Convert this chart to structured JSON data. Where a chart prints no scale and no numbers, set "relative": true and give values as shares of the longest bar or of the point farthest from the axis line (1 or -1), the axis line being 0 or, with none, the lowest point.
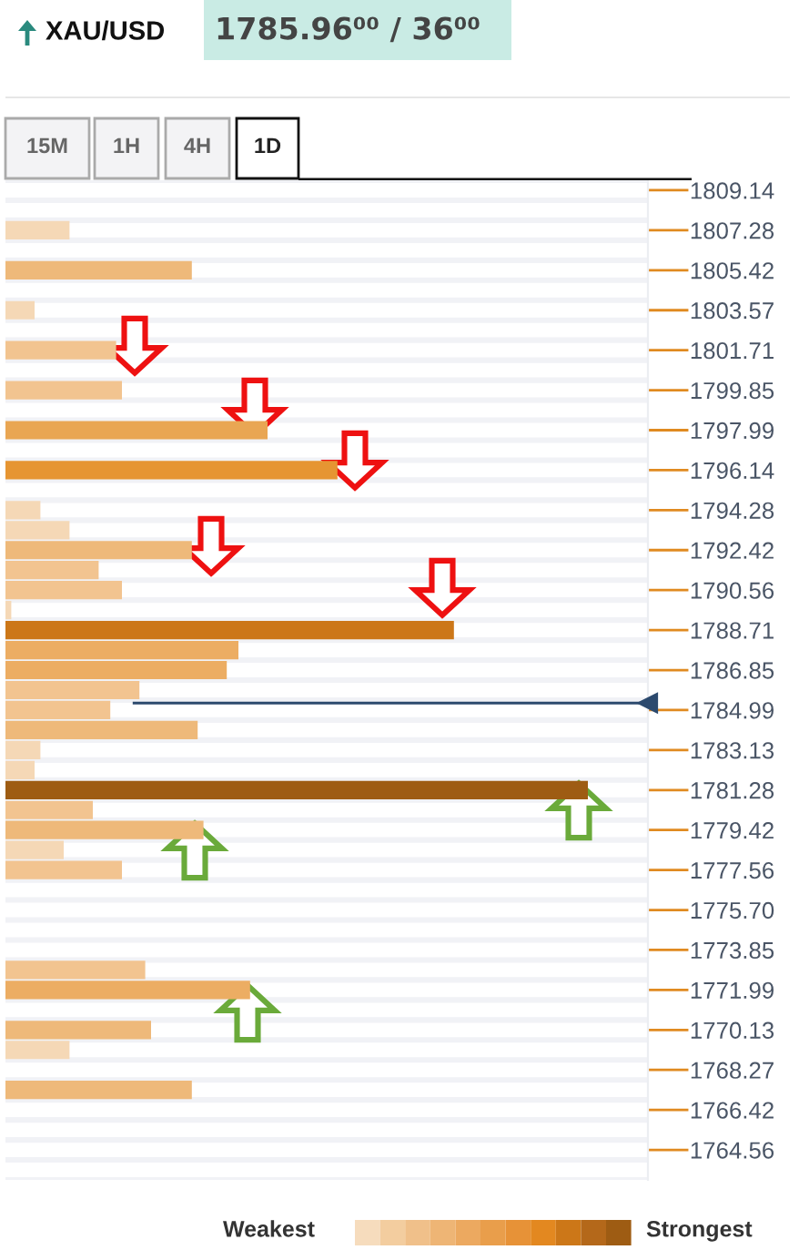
{
  "chart_data": {
    "type": "bar",
    "orientation": "horizontal",
    "relative": true,
    "title": "XAU/USD",
    "subtitle": "1785.96⁰⁰ / 36⁰⁰",
    "categories": [
      "1809.14",
      null,
      "1807.28",
      null,
      "1805.42",
      null,
      "1803.57",
      null,
      "1801.71",
      null,
      "1799.85",
      null,
      "1797.99",
      null,
      "1796.14",
      null,
      "1794.28",
      null,
      "1792.42",
      null,
      "1790.56",
      null,
      "1788.71",
      null,
      "1786.85",
      null,
      "1784.99",
      null,
      "1783.13",
      null,
      "1781.28",
      null,
      "1779.42",
      null,
      "1777.56",
      null,
      "1775.70",
      null,
      "1773.85",
      null,
      "1771.99",
      null,
      "1770.13",
      null,
      "1768.27",
      null,
      "1766.42",
      null,
      "1764.56",
      null
    ],
    "values": [
      null,
      null,
      0.11,
      null,
      0.32,
      null,
      0.05,
      null,
      0.19,
      null,
      0.2,
      null,
      0.45,
      null,
      0.57,
      null,
      0.06,
      0.11,
      0.32,
      0.16,
      0.2,
      0.01,
      0.77,
      0.4,
      0.38,
      0.23,
      0.18,
      0.33,
      0.06,
      0.05,
      1.0,
      0.15,
      0.34,
      0.1,
      0.2,
      null,
      null,
      null,
      null,
      0.24,
      0.42,
      null,
      0.25,
      0.11,
      null,
      0.32,
      null,
      null,
      null,
      null
    ],
    "colors": [
      "#f5d8b6",
      "#f5d8b6",
      "#f5d8b6",
      "#f5d8b6",
      "#eeb97a",
      "#f5d8b6",
      "#f5d8b6",
      "#f5d8b6",
      "#f2c490",
      "#f5d8b6",
      "#f2c490",
      "#f5d8b6",
      "#e9a653",
      "#f5d8b6",
      "#e69532",
      "#f5d8b6",
      "#f5d8b6",
      "#f5d8b6",
      "#eeb97a",
      "#f2c490",
      "#f2c490",
      "#f5d8b6",
      "#cc7718",
      "#ecad63",
      "#ecad63",
      "#f2c490",
      "#f2c490",
      "#eeb97a",
      "#f5d8b6",
      "#f5d8b6",
      "#9e5c13",
      "#f2c490",
      "#eeb97a",
      "#f5d8b6",
      "#f2c490",
      "#f5d8b6",
      "#f5d8b6",
      "#f5d8b6",
      "#f5d8b6",
      "#f2c490",
      "#ecad63",
      "#f5d8b6",
      "#eeb97a",
      "#f5d8b6",
      "#f5d8b6",
      "#eeb97a",
      "#f5d8b6",
      "#f5d8b6",
      "#f5d8b6",
      "#f5d8b6"
    ],
    "ref_lines": [
      {
        "axis": "y",
        "value": "1784.99",
        "label": null,
        "color": "#2c4a6e"
      }
    ],
    "annotations": [
      "15M",
      "1H",
      "4H",
      "1D",
      "Weakest",
      "Strongest"
    ],
    "grid": false,
    "legend": false
  }
}
